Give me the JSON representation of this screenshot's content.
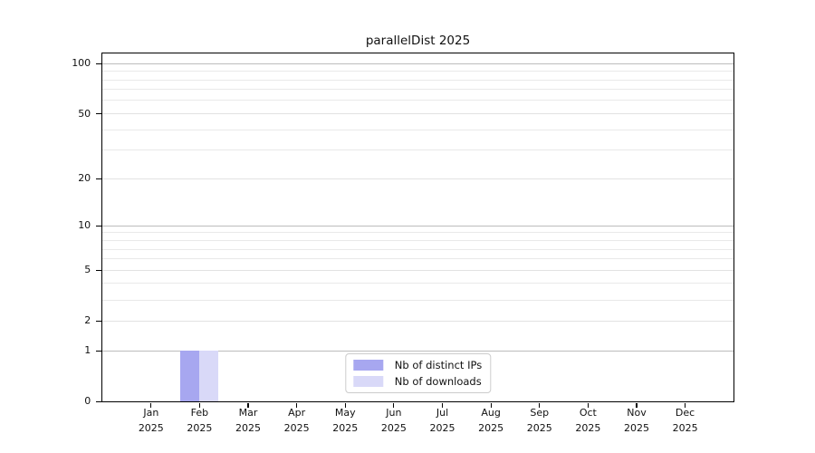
{
  "chart_data": {
    "type": "bar",
    "title": "parallelDist 2025",
    "x": {
      "categories": [
        "Jan",
        "Feb",
        "Mar",
        "Apr",
        "May",
        "Jun",
        "Jul",
        "Aug",
        "Sep",
        "Oct",
        "Nov",
        "Dec"
      ],
      "year": "2025"
    },
    "y_axis": {
      "scale": "log10(value+1)",
      "major_ticks": [
        0,
        1,
        2,
        5,
        10,
        20,
        50,
        100
      ],
      "decade_lines": [
        1,
        10,
        100
      ],
      "minor_lines": [
        3,
        4,
        6,
        7,
        8,
        9,
        30,
        40,
        60,
        70,
        80,
        90
      ],
      "top_value": 115
    },
    "series": [
      {
        "name": "Nb of distinct IPs",
        "color": "#a7a7f0",
        "values": [
          0,
          1,
          0,
          0,
          0,
          0,
          0,
          0,
          0,
          0,
          0,
          0
        ]
      },
      {
        "name": "Nb of downloads",
        "color": "#d9d9f8",
        "values": [
          0,
          1,
          0,
          0,
          0,
          0,
          0,
          0,
          0,
          0,
          0,
          0
        ]
      }
    ],
    "legend_position": "bottom-center",
    "grid": true
  },
  "colors": {
    "grid_decade": "#bcbcbc",
    "grid_major": "#e2e2e2",
    "grid_minor": "#e9e9e9",
    "axis": "#000000",
    "text": "#111111",
    "legend_border": "#cccccc",
    "background": "#ffffff"
  }
}
